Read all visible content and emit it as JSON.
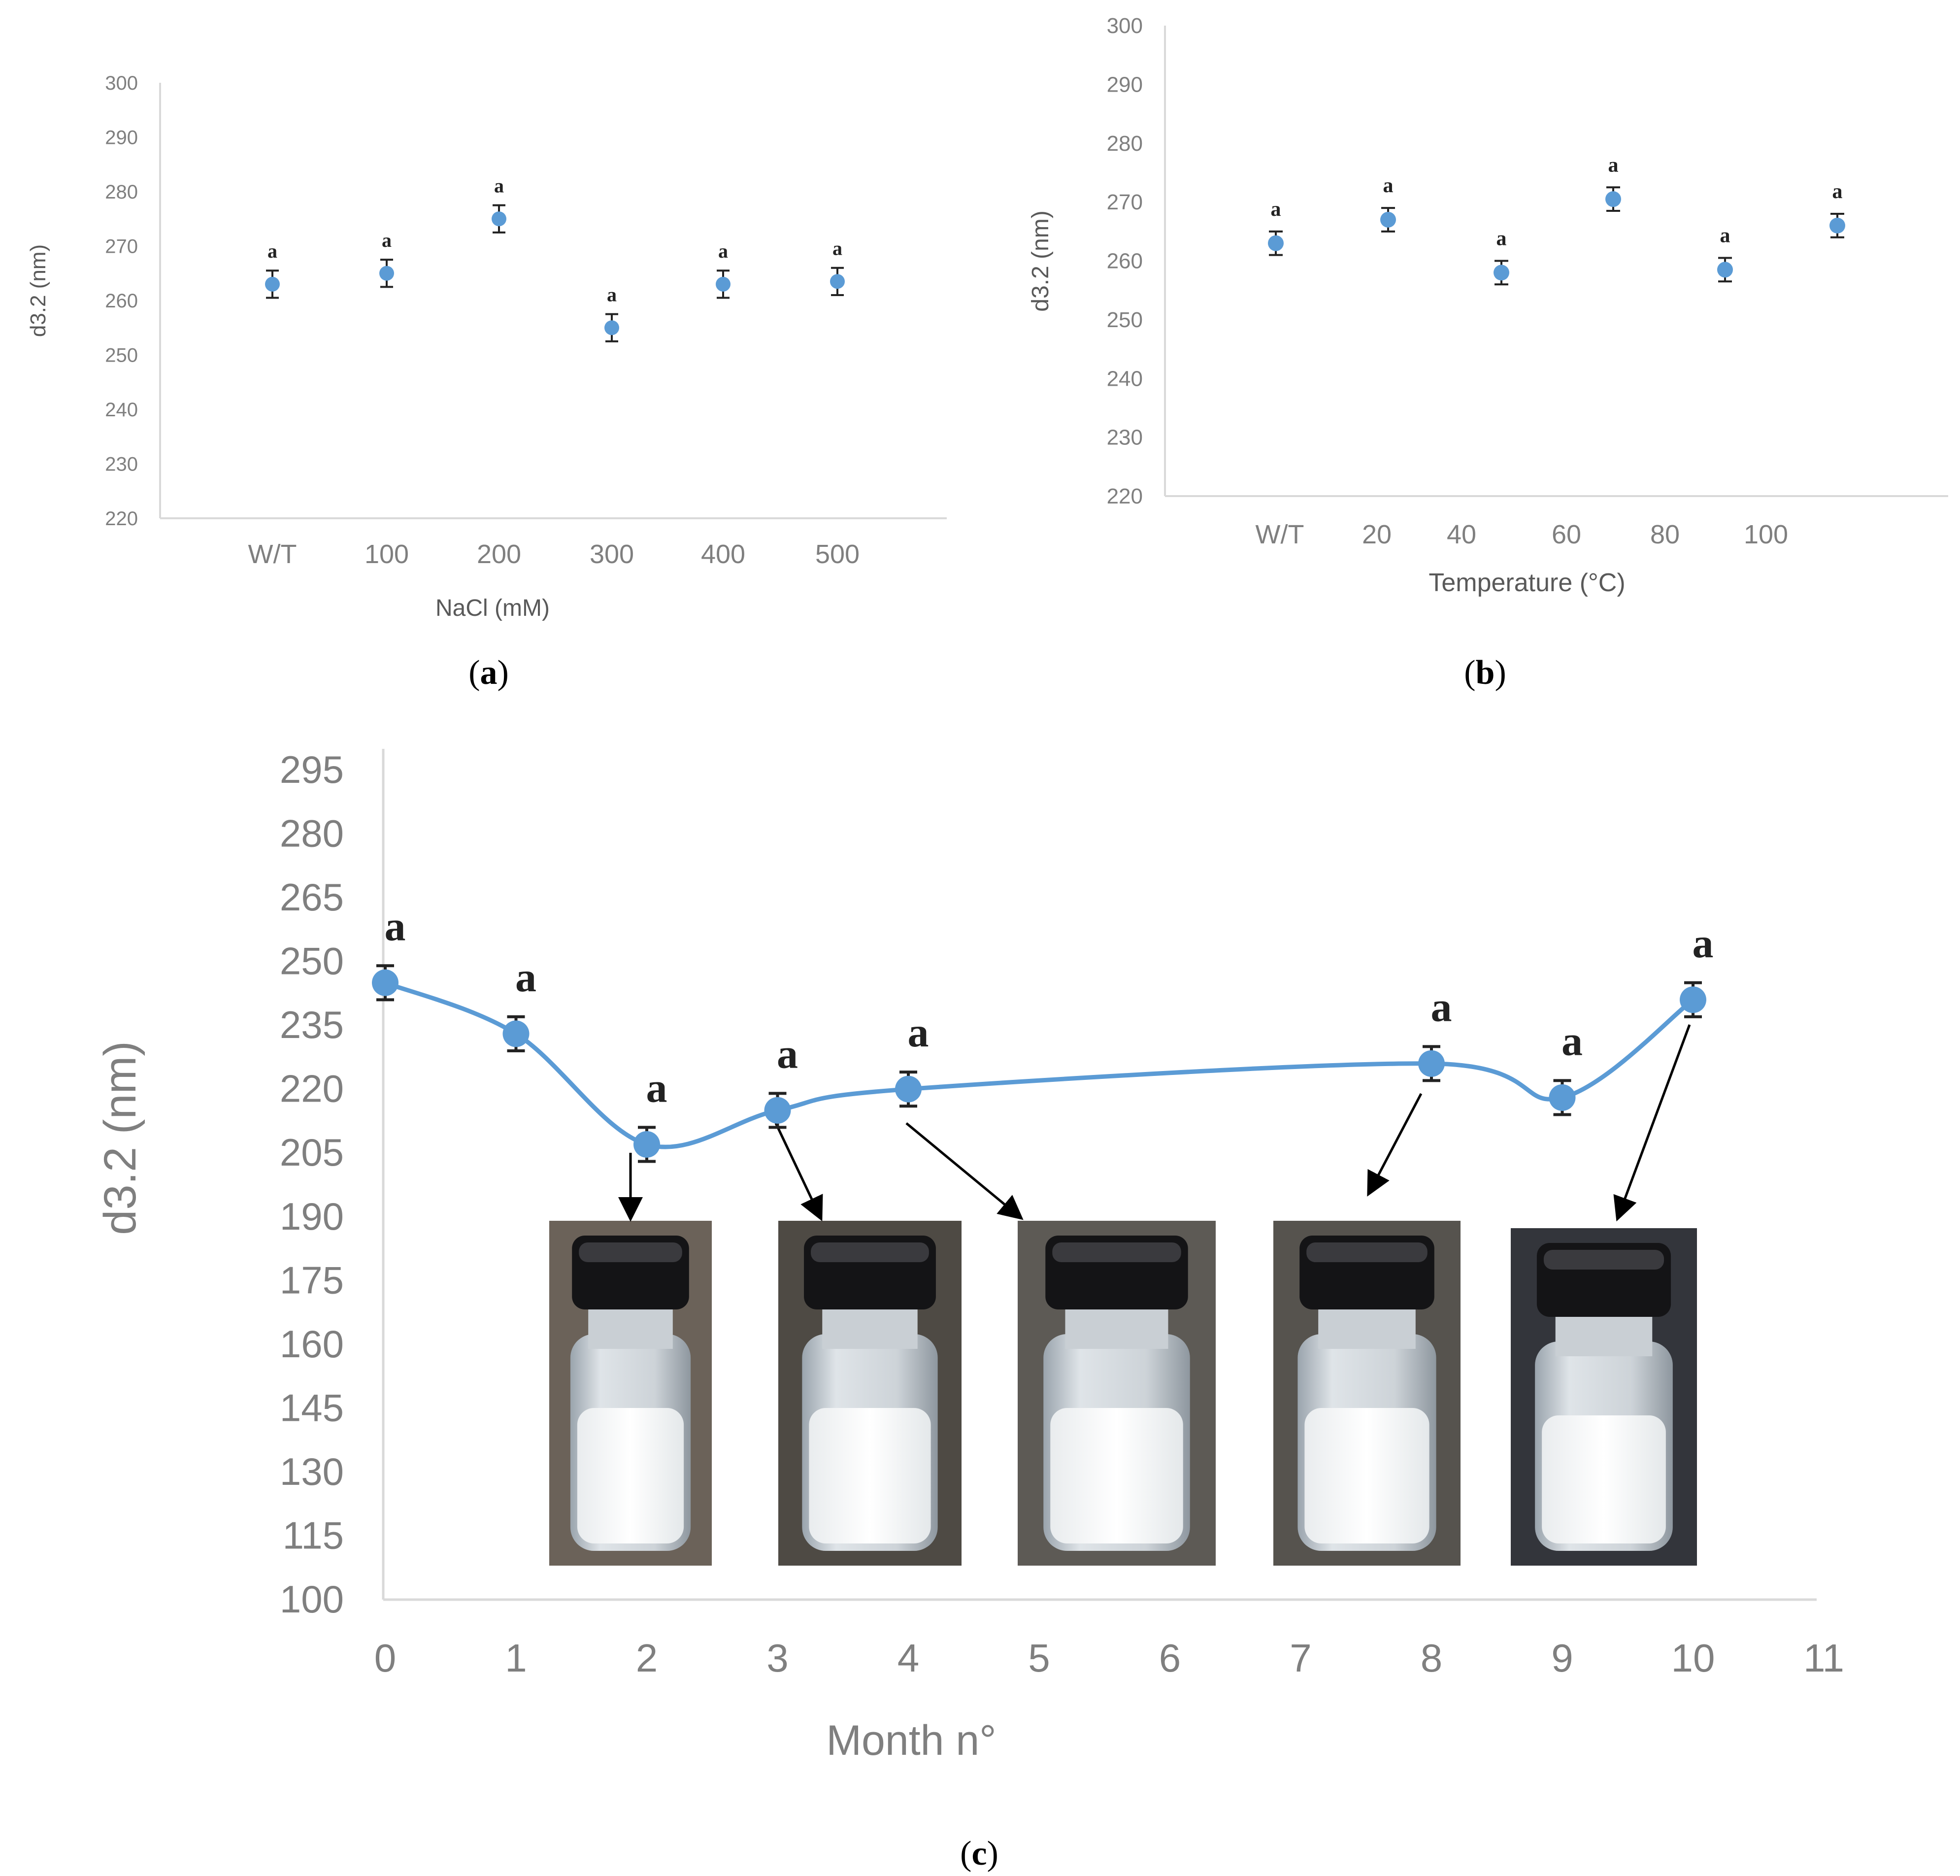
{
  "colors": {
    "point": "#5B9BD5",
    "axis": "#D9D9D9",
    "tick": "#7F7F7F",
    "errbar": "#222222",
    "letter": "#222222"
  },
  "panels": {
    "a": {
      "label_open": "(",
      "label_letter": "a",
      "label_close": ")"
    },
    "b": {
      "label_open": "(",
      "label_letter": "b",
      "label_close": ")"
    },
    "c": {
      "label_open": "(",
      "label_letter": "c",
      "label_close": ")"
    }
  },
  "photos": [
    {
      "icon": "vial-photo-icon",
      "arrow_from_month": 2
    },
    {
      "icon": "vial-photo-icon",
      "arrow_from_month": 3
    },
    {
      "icon": "vial-photo-icon",
      "arrow_from_month": 4
    },
    {
      "icon": "vial-photo-icon",
      "arrow_from_month": 8
    },
    {
      "icon": "vial-photo-icon",
      "arrow_from_month": 10
    }
  ],
  "chart_data": [
    {
      "id": "a",
      "type": "scatter",
      "title": "",
      "xlabel": "NaCl (mM)",
      "ylabel": "d3.2 (nm)",
      "categories": [
        "W/T",
        "100",
        "200",
        "300",
        "400",
        "500"
      ],
      "values": [
        263,
        265,
        275,
        255,
        263,
        263.5
      ],
      "errors": [
        2.5,
        2.5,
        2.5,
        2.5,
        2.5,
        2.5
      ],
      "significance": [
        "a",
        "a",
        "a",
        "a",
        "a",
        "a"
      ],
      "yticks": [
        220,
        230,
        240,
        250,
        260,
        270,
        280,
        290,
        300
      ],
      "ylim": [
        220,
        300
      ],
      "grid": false,
      "legend": "none"
    },
    {
      "id": "b",
      "type": "scatter",
      "title": "",
      "xlabel": "Temperature (°C)",
      "ylabel": "d3.2 (nm)",
      "tick_labels": [
        "W/T",
        "20",
        "40",
        "60",
        "80",
        "100"
      ],
      "values": [
        263,
        267,
        258,
        270.5,
        258.5,
        266
      ],
      "errors": [
        2,
        2,
        2,
        2,
        2,
        2
      ],
      "significance": [
        "a",
        "a",
        "a",
        "a",
        "a",
        "a"
      ],
      "yticks": [
        220,
        230,
        240,
        250,
        260,
        270,
        280,
        290,
        300
      ],
      "ylim": [
        220,
        300
      ],
      "grid": false,
      "legend": "none"
    },
    {
      "id": "c",
      "type": "line",
      "title": "",
      "xlabel": "Month n°",
      "ylabel": "d3.2 (nm)",
      "x": [
        0,
        1,
        2,
        3,
        4,
        8,
        9,
        10
      ],
      "values": [
        245,
        233,
        207,
        215,
        220,
        226,
        218,
        241
      ],
      "errors": [
        4,
        4,
        4,
        4,
        4,
        4,
        4,
        4
      ],
      "significance": [
        "a",
        "a",
        "a",
        "a",
        "a",
        "a",
        "a",
        "a"
      ],
      "xticks": [
        0,
        1,
        2,
        3,
        4,
        5,
        6,
        7,
        8,
        9,
        10,
        11
      ],
      "xlim": [
        0,
        11
      ],
      "yticks": [
        100,
        115,
        130,
        145,
        160,
        175,
        190,
        205,
        220,
        235,
        250,
        265,
        280,
        295
      ],
      "ylim": [
        100,
        295
      ],
      "smooth": true,
      "grid": false,
      "legend": "none"
    }
  ]
}
